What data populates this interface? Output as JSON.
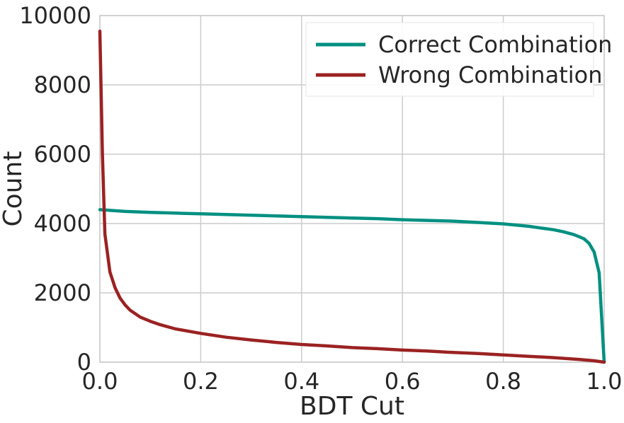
{
  "chart_data": {
    "type": "line",
    "title": "",
    "xlabel": "BDT Cut",
    "ylabel": "Count",
    "xlim": [
      0.0,
      1.0
    ],
    "ylim": [
      0,
      10000
    ],
    "xticks": [
      0.0,
      0.2,
      0.4,
      0.6,
      0.8,
      1.0
    ],
    "xtick_labels": [
      "0.0",
      "0.2",
      "0.4",
      "0.6",
      "0.8",
      "1.0"
    ],
    "yticks": [
      0,
      2000,
      4000,
      6000,
      8000,
      10000
    ],
    "ytick_labels": [
      "0",
      "2000",
      "4000",
      "6000",
      "8000",
      "10000"
    ],
    "grid": true,
    "legend_position": "top-right",
    "series": [
      {
        "name": "Correct Combination",
        "color": "#009081",
        "x": [
          0.0,
          0.02,
          0.05,
          0.1,
          0.15,
          0.2,
          0.25,
          0.3,
          0.35,
          0.4,
          0.45,
          0.5,
          0.55,
          0.6,
          0.65,
          0.7,
          0.75,
          0.8,
          0.85,
          0.88,
          0.9,
          0.92,
          0.94,
          0.95,
          0.96,
          0.97,
          0.98,
          0.99,
          1.0
        ],
        "y": [
          4400,
          4380,
          4350,
          4320,
          4300,
          4280,
          4260,
          4240,
          4220,
          4200,
          4180,
          4160,
          4140,
          4110,
          4090,
          4070,
          4030,
          3990,
          3920,
          3860,
          3820,
          3760,
          3680,
          3620,
          3560,
          3430,
          3180,
          2580,
          0
        ]
      },
      {
        "name": "Wrong Combination",
        "color": "#9b2222",
        "x": [
          0.0,
          0.005,
          0.01,
          0.02,
          0.03,
          0.04,
          0.05,
          0.06,
          0.08,
          0.1,
          0.12,
          0.15,
          0.2,
          0.25,
          0.3,
          0.35,
          0.4,
          0.45,
          0.5,
          0.55,
          0.6,
          0.65,
          0.7,
          0.75,
          0.8,
          0.85,
          0.9,
          0.95,
          0.98,
          1.0
        ],
        "y": [
          9550,
          6000,
          3700,
          2600,
          2150,
          1850,
          1650,
          1500,
          1300,
          1180,
          1080,
          960,
          830,
          720,
          640,
          570,
          510,
          470,
          420,
          390,
          350,
          320,
          280,
          250,
          210,
          170,
          130,
          80,
          40,
          0
        ]
      }
    ]
  }
}
